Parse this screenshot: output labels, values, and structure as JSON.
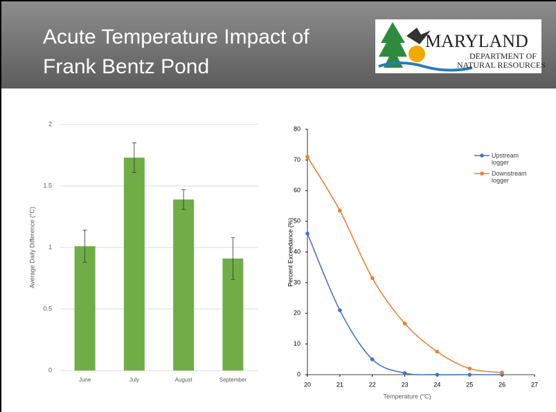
{
  "title": "Acute Temperature Impact of Frank Bentz Pond",
  "logo": {
    "name": "MARYLAND",
    "line1": "DEPARTMENT OF",
    "line2": "NATURAL RESOURCES"
  },
  "chart_data": [
    {
      "type": "bar",
      "categories": [
        "June",
        "July",
        "August",
        "September"
      ],
      "values": [
        1.01,
        1.73,
        1.39,
        0.91
      ],
      "errors": [
        0.13,
        0.12,
        0.08,
        0.17
      ],
      "color": "#70ad47",
      "ylabel": "Average Daily Difference (°C)",
      "ylim": [
        0,
        2
      ],
      "yticks": [
        0,
        0.5,
        1,
        1.5,
        2
      ],
      "grid": true
    },
    {
      "type": "line",
      "xlabel": "Temperature (°C)",
      "ylabel": "Percent Exceedance (%)",
      "x": [
        20,
        21,
        22,
        23,
        24,
        25,
        26
      ],
      "series": [
        {
          "name": "Upstream logger",
          "color": "#4472c4",
          "values": [
            46,
            21,
            5,
            0.5,
            0,
            0,
            0
          ]
        },
        {
          "name": "Downstream logger",
          "color": "#ed7d31",
          "values": [
            71,
            53.5,
            31.5,
            16.7,
            7.5,
            2,
            0.7
          ]
        }
      ],
      "xlim": [
        20,
        27
      ],
      "xticks": [
        20,
        21,
        22,
        23,
        24,
        25,
        26,
        27
      ],
      "ylim": [
        0,
        80
      ],
      "yticks": [
        0,
        10,
        20,
        30,
        40,
        50,
        60,
        70,
        80
      ],
      "grid": false
    }
  ]
}
